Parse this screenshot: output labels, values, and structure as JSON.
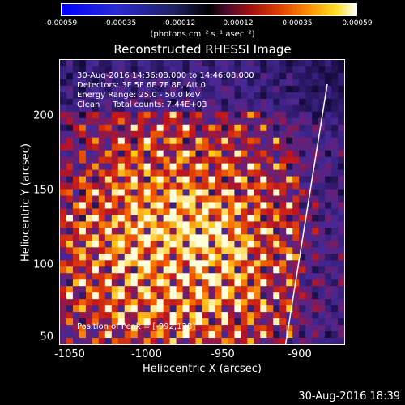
{
  "colorbar": {
    "ticks": [
      "-0.00059",
      "-0.00035",
      "-0.00012",
      "0.00012",
      "0.00035",
      "0.00059"
    ],
    "unit": "(photons cm⁻² s⁻¹ asec⁻²)"
  },
  "title": "Reconstructed RHESSI Image",
  "info": {
    "time_range": "30-Aug-2016 14:36:08.000 to 14:46:08.000",
    "detectors": "Detectors: 3F 5F 6F 7F 8F, Att 0",
    "energy_range": "Energy Range: 25.0 - 50.0 keV",
    "clean_counts": "Clean     Total counts: 7.44E+03",
    "peak": "Position of Peak = [-992,128]"
  },
  "axes": {
    "xlabel": "Heliocentric X (arcsec)",
    "ylabel": "Heliocentric Y (arcsec)",
    "xticks": [
      "-1050",
      "-1000",
      "-950",
      "-900"
    ],
    "yticks": [
      "200",
      "150",
      "100",
      "50"
    ]
  },
  "timestamp": "30-Aug-2016 18:39",
  "colors": {
    "min": "#0000ff",
    "mid": "#000000",
    "max": "#ffffff"
  }
}
